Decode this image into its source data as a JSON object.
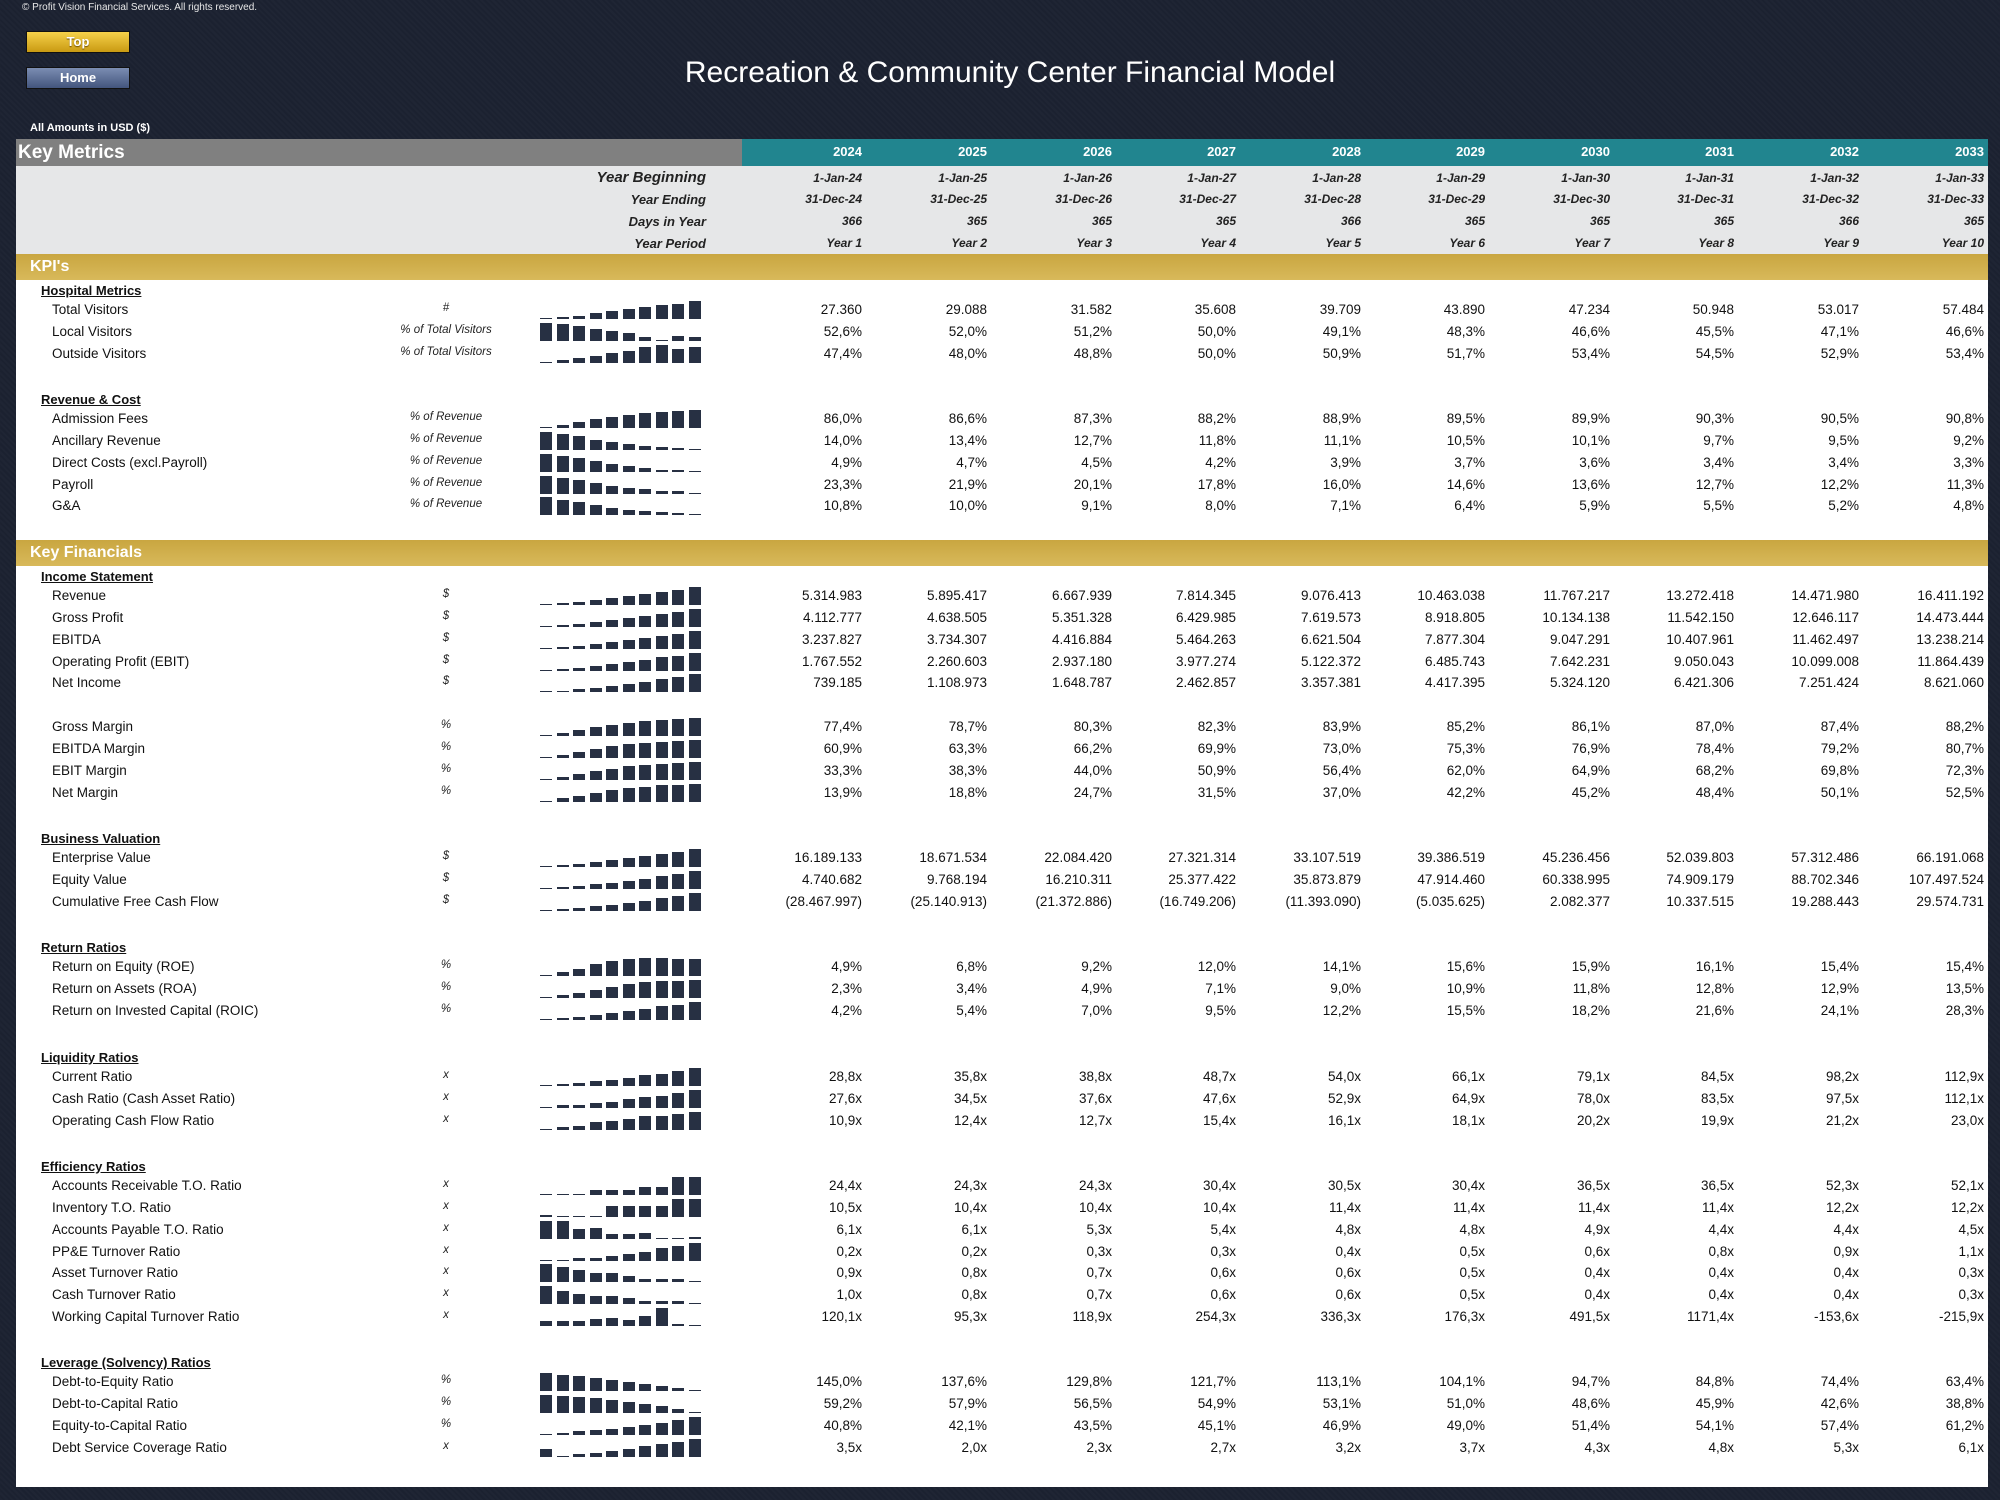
{
  "copyright": "© Profit Vision Financial Services. All rights reserved.",
  "nav": {
    "top_label": "Top",
    "home_label": "Home"
  },
  "title": "Recreation & Community Center Financial Model",
  "amounts_note": "All Amounts in  USD ($)",
  "header": {
    "label": "Key Metrics",
    "years": [
      "2024",
      "2025",
      "2026",
      "2027",
      "2028",
      "2029",
      "2030",
      "2031",
      "2032",
      "2033"
    ]
  },
  "dates": {
    "labels": [
      "Year Beginning",
      "Year Ending",
      "Days in Year",
      "Year Period"
    ],
    "rows": [
      [
        "1-Jan-24",
        "1-Jan-25",
        "1-Jan-26",
        "1-Jan-27",
        "1-Jan-28",
        "1-Jan-29",
        "1-Jan-30",
        "1-Jan-31",
        "1-Jan-32",
        "1-Jan-33"
      ],
      [
        "31-Dec-24",
        "31-Dec-25",
        "31-Dec-26",
        "31-Dec-27",
        "31-Dec-28",
        "31-Dec-29",
        "31-Dec-30",
        "31-Dec-31",
        "31-Dec-32",
        "31-Dec-33"
      ],
      [
        "366",
        "365",
        "365",
        "365",
        "366",
        "365",
        "365",
        "365",
        "366",
        "365"
      ],
      [
        "Year 1",
        "Year 2",
        "Year 3",
        "Year 4",
        "Year 5",
        "Year 6",
        "Year 7",
        "Year 8",
        "Year 9",
        "Year 10"
      ]
    ]
  },
  "colors": {
    "teal": "#21858f",
    "gold": "#c9a640",
    "grey": "#808080",
    "spark": "#273043",
    "bg": "#1b2130"
  },
  "sections": [
    {
      "title": "KPI's",
      "groups": [
        {
          "title": "Hospital Metrics",
          "rows": [
            {
              "label": "Total Visitors",
              "unit": "#",
              "values": [
                "27.360",
                "29.088",
                "31.582",
                "35.608",
                "39.709",
                "43.890",
                "47.234",
                "50.948",
                "53.017",
                "57.484"
              ]
            },
            {
              "label": "Local Visitors",
              "unit": "% of Total Visitors",
              "values": [
                "52,6%",
                "52,0%",
                "51,2%",
                "50,0%",
                "49,1%",
                "48,3%",
                "46,6%",
                "45,5%",
                "47,1%",
                "46,6%"
              ]
            },
            {
              "label": "Outside Visitors",
              "unit": "% of Total Visitors",
              "values": [
                "47,4%",
                "48,0%",
                "48,8%",
                "50,0%",
                "50,9%",
                "51,7%",
                "53,4%",
                "54,5%",
                "52,9%",
                "53,4%"
              ]
            }
          ]
        },
        {
          "title": "Revenue & Cost",
          "rows": [
            {
              "label": "Admission Fees",
              "unit": "% of Revenue",
              "values": [
                "86,0%",
                "86,6%",
                "87,3%",
                "88,2%",
                "88,9%",
                "89,5%",
                "89,9%",
                "90,3%",
                "90,5%",
                "90,8%"
              ]
            },
            {
              "label": "Ancillary Revenue",
              "unit": "% of Revenue",
              "values": [
                "14,0%",
                "13,4%",
                "12,7%",
                "11,8%",
                "11,1%",
                "10,5%",
                "10,1%",
                "9,7%",
                "9,5%",
                "9,2%"
              ]
            },
            {
              "label": "Direct Costs (excl.Payroll)",
              "unit": "% of Revenue",
              "values": [
                "4,9%",
                "4,7%",
                "4,5%",
                "4,2%",
                "3,9%",
                "3,7%",
                "3,6%",
                "3,4%",
                "3,4%",
                "3,3%"
              ]
            },
            {
              "label": "Payroll",
              "unit": "% of Revenue",
              "values": [
                "23,3%",
                "21,9%",
                "20,1%",
                "17,8%",
                "16,0%",
                "14,6%",
                "13,6%",
                "12,7%",
                "12,2%",
                "11,3%"
              ]
            },
            {
              "label": "G&A",
              "unit": "% of Revenue",
              "values": [
                "10,8%",
                "10,0%",
                "9,1%",
                "8,0%",
                "7,1%",
                "6,4%",
                "5,9%",
                "5,5%",
                "5,2%",
                "4,8%"
              ]
            }
          ]
        }
      ]
    },
    {
      "title": "Key Financials",
      "groups": [
        {
          "title": "Income Statement",
          "rows": [
            {
              "label": "Revenue",
              "unit": "$",
              "values": [
                "5.314.983",
                "5.895.417",
                "6.667.939",
                "7.814.345",
                "9.076.413",
                "10.463.038",
                "11.767.217",
                "13.272.418",
                "14.471.980",
                "16.411.192"
              ]
            },
            {
              "label": "Gross Profit",
              "unit": "$",
              "values": [
                "4.112.777",
                "4.638.505",
                "5.351.328",
                "6.429.985",
                "7.619.573",
                "8.918.805",
                "10.134.138",
                "11.542.150",
                "12.646.117",
                "14.473.444"
              ]
            },
            {
              "label": "EBITDA",
              "unit": "$",
              "values": [
                "3.237.827",
                "3.734.307",
                "4.416.884",
                "5.464.263",
                "6.621.504",
                "7.877.304",
                "9.047.291",
                "10.407.961",
                "11.462.497",
                "13.238.214"
              ]
            },
            {
              "label": "Operating Profit (EBIT)",
              "unit": "$",
              "values": [
                "1.767.552",
                "2.260.603",
                "2.937.180",
                "3.977.274",
                "5.122.372",
                "6.485.743",
                "7.642.231",
                "9.050.043",
                "10.099.008",
                "11.864.439"
              ]
            },
            {
              "label": "Net Income",
              "unit": "$",
              "values": [
                "739.185",
                "1.108.973",
                "1.648.787",
                "2.462.857",
                "3.357.381",
                "4.417.395",
                "5.324.120",
                "6.421.306",
                "7.251.424",
                "8.621.060"
              ]
            }
          ]
        },
        {
          "title": "",
          "rows": [
            {
              "label": "Gross Margin",
              "unit": "%",
              "values": [
                "77,4%",
                "78,7%",
                "80,3%",
                "82,3%",
                "83,9%",
                "85,2%",
                "86,1%",
                "87,0%",
                "87,4%",
                "88,2%"
              ]
            },
            {
              "label": "EBITDA Margin",
              "unit": "%",
              "values": [
                "60,9%",
                "63,3%",
                "66,2%",
                "69,9%",
                "73,0%",
                "75,3%",
                "76,9%",
                "78,4%",
                "79,2%",
                "80,7%"
              ]
            },
            {
              "label": "EBIT Margin",
              "unit": "%",
              "values": [
                "33,3%",
                "38,3%",
                "44,0%",
                "50,9%",
                "56,4%",
                "62,0%",
                "64,9%",
                "68,2%",
                "69,8%",
                "72,3%"
              ]
            },
            {
              "label": "Net Margin",
              "unit": "%",
              "values": [
                "13,9%",
                "18,8%",
                "24,7%",
                "31,5%",
                "37,0%",
                "42,2%",
                "45,2%",
                "48,4%",
                "50,1%",
                "52,5%"
              ]
            }
          ]
        },
        {
          "title": "Business Valuation",
          "rows": [
            {
              "label": "Enterprise Value",
              "unit": "$",
              "values": [
                "16.189.133",
                "18.671.534",
                "22.084.420",
                "27.321.314",
                "33.107.519",
                "39.386.519",
                "45.236.456",
                "52.039.803",
                "57.312.486",
                "66.191.068"
              ]
            },
            {
              "label": "Equity Value",
              "unit": "$",
              "values": [
                "4.740.682",
                "9.768.194",
                "16.210.311",
                "25.377.422",
                "35.873.879",
                "47.914.460",
                "60.338.995",
                "74.909.179",
                "88.702.346",
                "107.497.524"
              ]
            },
            {
              "label": "Cumulative Free Cash Flow",
              "unit": "$",
              "values": [
                "(28.467.997)",
                "(25.140.913)",
                "(21.372.886)",
                "(16.749.206)",
                "(11.393.090)",
                "(5.035.625)",
                "2.082.377",
                "10.337.515",
                "19.288.443",
                "29.574.731"
              ]
            }
          ]
        },
        {
          "title": "Return Ratios",
          "rows": [
            {
              "label": "Return on Equity (ROE)",
              "unit": "%",
              "values": [
                "4,9%",
                "6,8%",
                "9,2%",
                "12,0%",
                "14,1%",
                "15,6%",
                "15,9%",
                "16,1%",
                "15,4%",
                "15,4%"
              ]
            },
            {
              "label": "Return on Assets (ROA)",
              "unit": "%",
              "values": [
                "2,3%",
                "3,4%",
                "4,9%",
                "7,1%",
                "9,0%",
                "10,9%",
                "11,8%",
                "12,8%",
                "12,9%",
                "13,5%"
              ]
            },
            {
              "label": "Return on Invested Capital (ROIC)",
              "unit": "%",
              "values": [
                "4,2%",
                "5,4%",
                "7,0%",
                "9,5%",
                "12,2%",
                "15,5%",
                "18,2%",
                "21,6%",
                "24,1%",
                "28,3%"
              ]
            }
          ]
        },
        {
          "title": "Liquidity Ratios",
          "rows": [
            {
              "label": "Current Ratio",
              "unit": "x",
              "values": [
                "28,8x",
                "35,8x",
                "38,8x",
                "48,7x",
                "54,0x",
                "66,1x",
                "79,1x",
                "84,5x",
                "98,2x",
                "112,9x"
              ]
            },
            {
              "label": "Cash Ratio (Cash Asset Ratio)",
              "unit": "x",
              "values": [
                "27,6x",
                "34,5x",
                "37,6x",
                "47,6x",
                "52,9x",
                "64,9x",
                "78,0x",
                "83,5x",
                "97,5x",
                "112,1x"
              ]
            },
            {
              "label": "Operating Cash Flow Ratio",
              "unit": "x",
              "values": [
                "10,9x",
                "12,4x",
                "12,7x",
                "15,4x",
                "16,1x",
                "18,1x",
                "20,2x",
                "19,9x",
                "21,2x",
                "23,0x"
              ]
            }
          ]
        },
        {
          "title": "Efficiency Ratios",
          "rows": [
            {
              "label": "Accounts Receivable T.O. Ratio",
              "unit": "x",
              "values": [
                "24,4x",
                "24,3x",
                "24,3x",
                "30,4x",
                "30,5x",
                "30,4x",
                "36,5x",
                "36,5x",
                "52,3x",
                "52,1x"
              ]
            },
            {
              "label": "Inventory T.O. Ratio",
              "unit": "x",
              "values": [
                "10,5x",
                "10,4x",
                "10,4x",
                "10,4x",
                "11,4x",
                "11,4x",
                "11,4x",
                "11,4x",
                "12,2x",
                "12,2x"
              ]
            },
            {
              "label": "Accounts Payable T.O. Ratio",
              "unit": "x",
              "values": [
                "6,1x",
                "6,1x",
                "5,3x",
                "5,4x",
                "4,8x",
                "4,8x",
                "4,9x",
                "4,4x",
                "4,4x",
                "4,5x"
              ]
            },
            {
              "label": "PP&E Turnover Ratio",
              "unit": "x",
              "values": [
                "0,2x",
                "0,2x",
                "0,3x",
                "0,3x",
                "0,4x",
                "0,5x",
                "0,6x",
                "0,8x",
                "0,9x",
                "1,1x"
              ]
            },
            {
              "label": "Asset Turnover Ratio",
              "unit": "x",
              "values": [
                "0,9x",
                "0,8x",
                "0,7x",
                "0,6x",
                "0,6x",
                "0,5x",
                "0,4x",
                "0,4x",
                "0,4x",
                "0,3x"
              ]
            },
            {
              "label": "Cash Turnover Ratio",
              "unit": "x",
              "values": [
                "1,0x",
                "0,8x",
                "0,7x",
                "0,6x",
                "0,6x",
                "0,5x",
                "0,4x",
                "0,4x",
                "0,4x",
                "0,3x"
              ]
            },
            {
              "label": "Working Capital Turnover Ratio",
              "unit": "x",
              "values": [
                "120,1x",
                "95,3x",
                "118,9x",
                "254,3x",
                "336,3x",
                "176,3x",
                "491,5x",
                "1171,4x",
                "-153,6x",
                "-215,9x"
              ]
            }
          ]
        },
        {
          "title": "Leverage (Solvency) Ratios",
          "rows": [
            {
              "label": "Debt-to-Equity Ratio",
              "unit": "%",
              "values": [
                "145,0%",
                "137,6%",
                "129,8%",
                "121,7%",
                "113,1%",
                "104,1%",
                "94,7%",
                "84,8%",
                "74,4%",
                "63,4%"
              ]
            },
            {
              "label": "Debt-to-Capital Ratio",
              "unit": "%",
              "values": [
                "59,2%",
                "57,9%",
                "56,5%",
                "54,9%",
                "53,1%",
                "51,0%",
                "48,6%",
                "45,9%",
                "42,6%",
                "38,8%"
              ]
            },
            {
              "label": "Equity-to-Capital Ratio",
              "unit": "%",
              "values": [
                "40,8%",
                "42,1%",
                "43,5%",
                "45,1%",
                "46,9%",
                "49,0%",
                "51,4%",
                "54,1%",
                "57,4%",
                "61,2%"
              ]
            },
            {
              "label": "Debt Service Coverage Ratio",
              "unit": "x",
              "values": [
                "3,5x",
                "2,0x",
                "2,3x",
                "2,7x",
                "3,2x",
                "3,7x",
                "4,3x",
                "4,8x",
                "5,3x",
                "6,1x"
              ]
            }
          ]
        }
      ]
    }
  ]
}
